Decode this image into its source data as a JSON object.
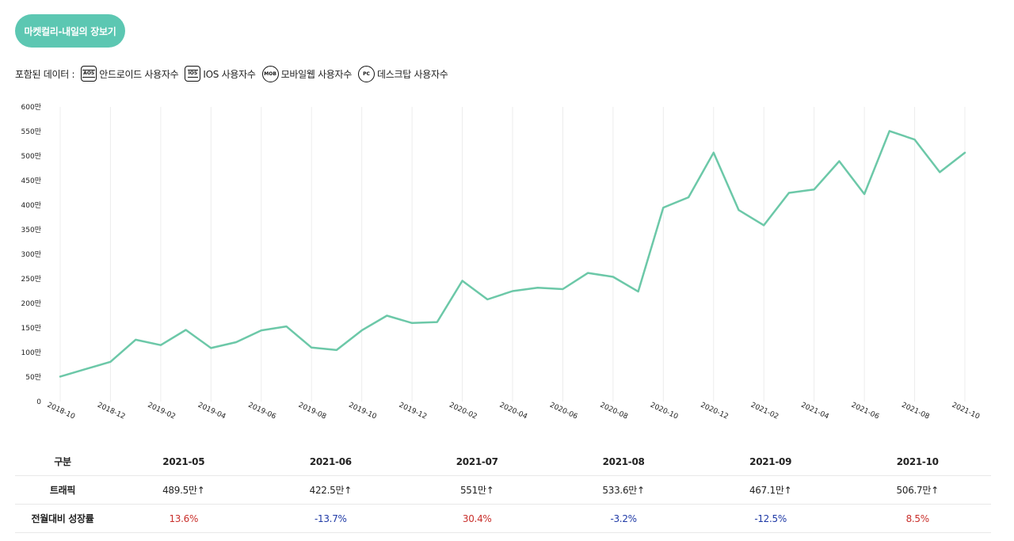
{
  "header": {
    "title": "마켓컬리-내일의 장보기"
  },
  "legend": {
    "prefix": "포함된 데이터 :",
    "items": [
      {
        "badge": "AOS",
        "label": "안드로이드 사용자수"
      },
      {
        "badge": "IOS",
        "label": "IOS 사용자수"
      },
      {
        "badge": "MOB",
        "label": "모바일웹 사용자수"
      },
      {
        "badge": "PC",
        "label": "데스크탑 사용자수"
      }
    ]
  },
  "chart_data": {
    "type": "line",
    "title": "",
    "xlabel": "",
    "ylabel": "",
    "ylim": [
      0,
      600
    ],
    "yticks": [
      "0",
      "50만",
      "100만",
      "150만",
      "200만",
      "250만",
      "300만",
      "350만",
      "400만",
      "450만",
      "500만",
      "550만",
      "600만"
    ],
    "grid": "vertical",
    "x": [
      "2018-10",
      "2018-11",
      "2018-12",
      "2019-01",
      "2019-02",
      "2019-03",
      "2019-04",
      "2019-05",
      "2019-06",
      "2019-07",
      "2019-08",
      "2019-09",
      "2019-10",
      "2019-11",
      "2019-12",
      "2020-01",
      "2020-02",
      "2020-03",
      "2020-04",
      "2020-05",
      "2020-06",
      "2020-07",
      "2020-08",
      "2020-09",
      "2020-10",
      "2020-11",
      "2020-12",
      "2021-01",
      "2021-02",
      "2021-03",
      "2021-04",
      "2021-05",
      "2021-06",
      "2021-07",
      "2021-08",
      "2021-09",
      "2021-10"
    ],
    "xticks": [
      "2018-10",
      "2018-12",
      "2019-02",
      "2019-04",
      "2019-06",
      "2019-08",
      "2019-10",
      "2019-12",
      "2020-02",
      "2020-04",
      "2020-06",
      "2020-08",
      "2020-10",
      "2020-12",
      "2021-02",
      "2021-04",
      "2021-06",
      "2021-08",
      "2021-10"
    ],
    "series": [
      {
        "color": "#6cc8a8",
        "values": [
          51,
          66,
          81,
          126,
          115,
          146,
          109,
          121,
          145,
          153,
          110,
          105,
          145,
          175,
          160,
          162,
          246,
          208,
          225,
          232,
          229,
          262,
          254,
          224,
          395,
          416,
          507,
          390,
          359,
          425,
          432,
          489.5,
          422.5,
          551,
          533.6,
          467.1,
          506.7
        ]
      }
    ]
  },
  "table": {
    "header_label": "구분",
    "months": [
      "2021-05",
      "2021-06",
      "2021-07",
      "2021-08",
      "2021-09",
      "2021-10"
    ],
    "traffic_label": "트래픽",
    "traffic": [
      "489.5만",
      "422.5만",
      "551만",
      "533.6만",
      "467.1만",
      "506.7만"
    ],
    "arrow": "↑",
    "growth_label": "전월대비 성장률",
    "growth": [
      "13.6%",
      "-13.7%",
      "30.4%",
      "-3.2%",
      "-12.5%",
      "8.5%"
    ],
    "colors": {
      "positive": "#c9302c",
      "negative": "#1f3aa6"
    }
  }
}
